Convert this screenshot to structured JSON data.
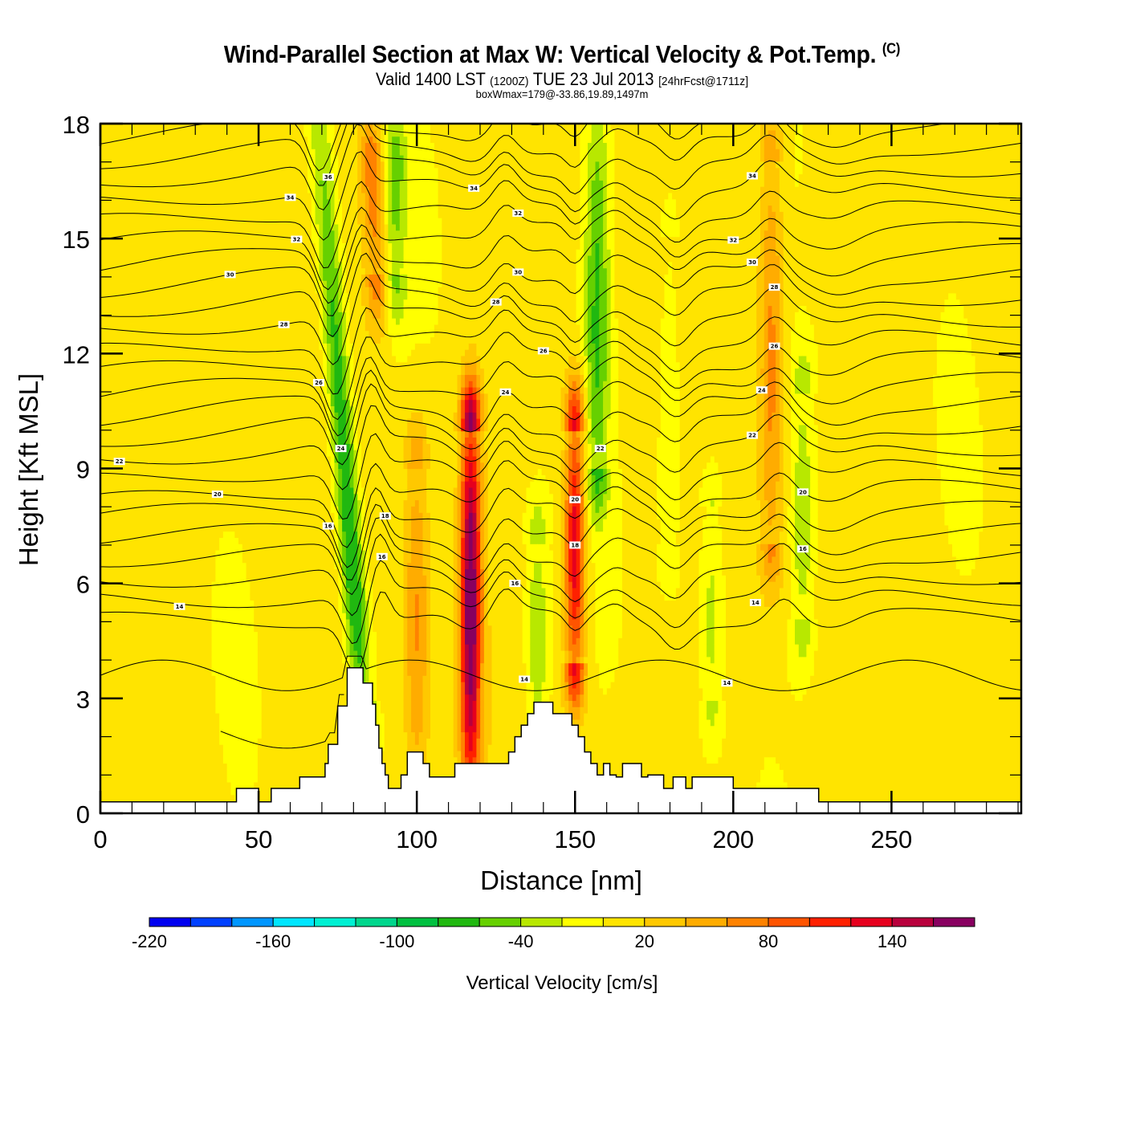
{
  "header": {
    "title": "Wind-Parallel Section at Max W: Vertical Velocity & Pot.Temp.",
    "copyright": "(C)",
    "valid_prefix": "Valid 1400 LST",
    "valid_utc": "(1200Z)",
    "valid_date": "TUE 23 Jul 2013",
    "forecast": "[24hrFcst@1711z]",
    "box_info": "boxWmax=179@-33.86,19.89,1497m"
  },
  "chart_data": {
    "type": "heatmap",
    "title": "Wind-Parallel Section at Max W: Vertical Velocity & Pot.Temp.",
    "subtitle": "Valid 1400 LST (1200Z) TUE 23 Jul 2013 [24hrFcst@1711z]",
    "annotation": "boxWmax=179@-33.86,19.89,1497m",
    "xlabel": "Distance [nm]",
    "ylabel": "Height [Kft MSL]",
    "xlim": [
      0,
      291
    ],
    "ylim": [
      0,
      18
    ],
    "x_ticks": [
      0,
      50,
      100,
      150,
      200,
      250
    ],
    "x_minor_step": 10,
    "y_ticks": [
      0,
      3,
      6,
      9,
      12,
      15,
      18
    ],
    "y_minor_step": 1,
    "colorbar": {
      "title": "Vertical Velocity [cm/s]",
      "placement": "bottom",
      "boundaries": [
        -220,
        -200,
        -180,
        -160,
        -140,
        -120,
        -100,
        -80,
        -60,
        -40,
        -20,
        0,
        20,
        40,
        60,
        80,
        100,
        120,
        140,
        160,
        180
      ],
      "tick_labels": [
        "-220",
        "-160",
        "-100",
        "-40",
        "20",
        "80",
        "140"
      ],
      "tick_values": [
        -220,
        -160,
        -100,
        -40,
        20,
        80,
        140
      ],
      "colors": [
        "#0000f0",
        "#0040ff",
        "#0096ff",
        "#00e6ff",
        "#00f0d2",
        "#00d68c",
        "#00c040",
        "#20b810",
        "#66d000",
        "#b8e800",
        "#ffff00",
        "#ffe400",
        "#ffc800",
        "#ffac00",
        "#ff8200",
        "#ff5400",
        "#ff2000",
        "#e6001e",
        "#b8003c",
        "#880060"
      ]
    },
    "shaded_field": {
      "name": "Vertical Velocity",
      "units": "cm/s",
      "max_value": 179,
      "features": [
        {
          "kind": "updraft",
          "x_nm": 117,
          "bottom_kft": 1,
          "top_kft": 10,
          "peak_kft": 5.5,
          "value": 175
        },
        {
          "kind": "updraft",
          "x_nm": 150,
          "bottom_kft": 4,
          "top_kft": 10,
          "peak_kft": 7,
          "value": 130
        },
        {
          "kind": "updraft",
          "x_nm": 86,
          "bottom_kft": 14,
          "top_kft": 18,
          "peak_kft": 17,
          "value": 75
        },
        {
          "kind": "updraft",
          "x_nm": 212,
          "bottom_kft": 7,
          "top_kft": 17,
          "peak_kft": 12,
          "value": 60
        },
        {
          "kind": "updraft",
          "x_nm": 100,
          "bottom_kft": 1,
          "top_kft": 9,
          "peak_kft": 5,
          "value": 55
        },
        {
          "kind": "downdraft",
          "x_nm": 80,
          "bottom_kft": 3,
          "top_kft": 18,
          "peak_kft": 6,
          "value": -95
        },
        {
          "kind": "downdraft",
          "x_nm": 157,
          "bottom_kft": 9,
          "top_kft": 18,
          "peak_kft": 13,
          "value": -70
        },
        {
          "kind": "downdraft",
          "x_nm": 93,
          "bottom_kft": 14,
          "top_kft": 18,
          "peak_kft": 17,
          "value": -55
        },
        {
          "kind": "downdraft",
          "x_nm": 138,
          "bottom_kft": 2,
          "top_kft": 7,
          "peak_kft": 4.5,
          "value": -45
        },
        {
          "kind": "downdraft",
          "x_nm": 222,
          "bottom_kft": 5,
          "top_kft": 11,
          "peak_kft": 7.5,
          "value": -40
        },
        {
          "kind": "downdraft",
          "x_nm": 193,
          "bottom_kft": 3,
          "top_kft": 8,
          "peak_kft": 5,
          "value": -35
        },
        {
          "kind": "downdraft",
          "x_nm": 180,
          "bottom_kft": 7,
          "top_kft": 15,
          "peak_kft": 9,
          "value": -30
        }
      ]
    },
    "contour_field": {
      "name": "Potential Temperature",
      "units": "C",
      "levels": [
        14,
        15,
        16,
        17,
        18,
        19,
        20,
        21,
        22,
        23,
        24,
        25,
        26,
        27,
        28,
        29,
        30,
        31,
        32,
        33,
        34,
        35,
        36,
        37
      ],
      "labeled_values": [
        "36",
        "34",
        "34",
        "32",
        "32",
        "30",
        "30",
        "28",
        "28",
        "26",
        "26",
        "24",
        "24",
        "22",
        "22",
        "20",
        "20",
        "18",
        "18",
        "16",
        "16",
        "16",
        "14",
        "14",
        "14",
        "14"
      ]
    },
    "terrain": {
      "units": "kft",
      "x_nm": [
        0,
        43,
        43,
        50,
        50,
        54,
        54,
        63,
        63,
        71,
        71,
        72,
        72,
        75,
        75,
        78,
        78,
        83,
        83,
        86,
        86,
        87,
        87,
        88,
        88,
        89,
        89,
        90,
        90,
        91,
        91,
        95,
        95,
        97,
        97,
        102,
        102,
        104,
        104,
        112,
        112,
        129,
        129,
        131,
        131,
        133,
        133,
        135,
        135,
        137,
        137,
        143,
        143,
        149,
        149,
        151,
        151,
        153,
        153,
        155,
        155,
        157,
        157,
        159,
        159,
        161,
        161,
        163,
        163,
        165,
        165,
        171,
        171,
        173,
        173,
        178,
        178,
        181,
        181,
        185,
        185,
        187,
        187,
        200,
        200,
        227,
        227,
        291
      ],
      "height_kft": [
        0.3,
        0.3,
        0.65,
        0.65,
        0.3,
        0.3,
        0.65,
        0.65,
        0.95,
        0.95,
        1.3,
        1.3,
        1.8,
        1.8,
        2.8,
        2.8,
        3.8,
        3.8,
        3.4,
        3.4,
        2.85,
        2.85,
        2.3,
        2.3,
        1.7,
        1.7,
        1.3,
        1.3,
        1.0,
        1.0,
        0.65,
        0.65,
        1.0,
        1.0,
        1.6,
        1.6,
        1.3,
        1.3,
        0.95,
        0.95,
        1.3,
        1.3,
        1.6,
        1.6,
        2.0,
        2.0,
        2.3,
        2.3,
        2.6,
        2.6,
        2.9,
        2.9,
        2.6,
        2.6,
        2.3,
        2.3,
        2.0,
        2.0,
        1.6,
        1.6,
        1.3,
        1.3,
        1.0,
        1.0,
        1.3,
        1.3,
        1.0,
        1.0,
        0.95,
        0.95,
        1.3,
        1.3,
        0.95,
        0.95,
        1.0,
        1.0,
        0.65,
        0.65,
        0.95,
        0.95,
        0.65,
        0.65,
        0.95,
        0.95,
        0.65,
        0.65,
        0.3,
        0.3
      ]
    }
  }
}
